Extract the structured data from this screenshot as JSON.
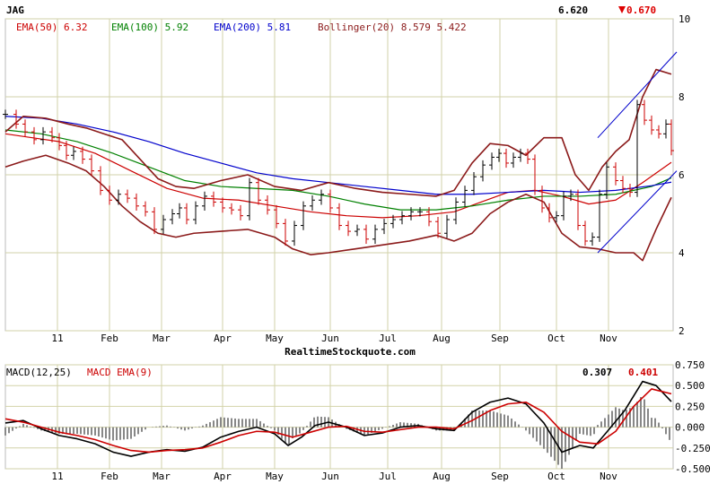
{
  "watermark": "RealtimeStockquote.com",
  "chart_data": [
    {
      "type": "ohlc",
      "symbol": "JAG",
      "last_price": "6.620",
      "change": "0.670",
      "change_direction": "down",
      "x_tick_labels": [
        "11",
        "Feb",
        "Mar",
        "Apr",
        "May",
        "Jun",
        "Jul",
        "Aug",
        "Sep",
        "Oct",
        "Nov"
      ],
      "y_tick_labels": [
        "2",
        "4",
        "6",
        "8",
        "10"
      ],
      "ylim": [
        2,
        10
      ],
      "grid": true,
      "legend": [
        {
          "label": "EMA(50)",
          "value": "6.32",
          "color": "#cc0000"
        },
        {
          "label": "EMA(100)",
          "value": "5.92",
          "color": "#008000"
        },
        {
          "label": "EMA(200)",
          "value": "5.81",
          "color": "#0000cc"
        },
        {
          "label": "Bollinger(20)",
          "value": "8.579 5.422",
          "color": "#8b1a1a"
        }
      ],
      "series": [
        {
          "name": "close",
          "color": "#000000",
          "x": [
            0,
            12,
            22,
            32,
            42,
            52,
            60,
            68,
            76,
            86,
            96,
            106,
            116,
            126,
            136,
            146,
            156,
            166,
            176,
            186,
            194,
            202,
            212,
            222,
            232,
            242,
            252,
            262,
            272,
            282,
            292,
            302,
            312,
            322,
            332,
            342,
            352,
            362,
            372,
            382,
            392,
            402,
            412,
            422,
            432,
            442,
            452,
            462,
            472,
            482,
            492,
            502,
            512,
            522,
            532,
            542,
            550,
            558,
            566,
            574,
            582,
            590,
            598,
            606,
            614,
            622,
            630,
            638,
            646,
            654,
            662,
            670,
            680,
            688,
            696,
            704,
            712,
            720,
            728,
            736,
            742
          ],
          "values": [
            7.55,
            7.3,
            7.1,
            6.9,
            7.1,
            6.95,
            6.75,
            6.5,
            6.6,
            6.4,
            6.1,
            5.6,
            5.35,
            5.5,
            5.4,
            5.2,
            5.05,
            4.6,
            4.85,
            5.0,
            5.15,
            4.85,
            5.2,
            5.45,
            5.3,
            5.15,
            5.1,
            4.95,
            5.8,
            5.35,
            5.1,
            4.75,
            4.3,
            4.7,
            5.2,
            5.35,
            5.5,
            5.15,
            4.7,
            4.55,
            4.6,
            4.35,
            4.6,
            4.75,
            4.85,
            4.95,
            5.05,
            5.05,
            4.8,
            4.5,
            4.85,
            5.3,
            5.6,
            5.95,
            6.25,
            6.45,
            6.55,
            6.3,
            6.45,
            6.55,
            6.4,
            5.6,
            5.15,
            4.9,
            4.95,
            5.45,
            5.5,
            4.7,
            4.3,
            4.4,
            5.5,
            6.2,
            5.85,
            5.65,
            5.55,
            7.8,
            7.4,
            7.15,
            7.05,
            7.3,
            6.62
          ]
        },
        {
          "name": "EMA(50)",
          "color": "#cc0000",
          "x": [
            0,
            30,
            60,
            100,
            140,
            180,
            220,
            260,
            300,
            340,
            380,
            420,
            460,
            500,
            530,
            560,
            590,
            620,
            650,
            680,
            710,
            742
          ],
          "values": [
            7.05,
            6.95,
            6.85,
            6.55,
            6.1,
            5.65,
            5.4,
            5.35,
            5.2,
            5.05,
            4.95,
            4.9,
            4.95,
            5.05,
            5.3,
            5.55,
            5.6,
            5.45,
            5.25,
            5.35,
            5.8,
            6.32
          ]
        },
        {
          "name": "EMA(100)",
          "color": "#008000",
          "x": [
            0,
            40,
            80,
            120,
            160,
            200,
            240,
            280,
            320,
            360,
            400,
            440,
            480,
            520,
            560,
            600,
            640,
            680,
            720,
            742
          ],
          "values": [
            7.15,
            7.05,
            6.85,
            6.55,
            6.2,
            5.85,
            5.7,
            5.65,
            5.6,
            5.45,
            5.25,
            5.1,
            5.1,
            5.2,
            5.35,
            5.45,
            5.45,
            5.5,
            5.7,
            5.92
          ]
        },
        {
          "name": "EMA(200)",
          "color": "#0000cc",
          "x": [
            0,
            40,
            80,
            120,
            160,
            200,
            240,
            280,
            320,
            360,
            400,
            440,
            480,
            520,
            560,
            600,
            640,
            680,
            720,
            742
          ],
          "values": [
            7.5,
            7.45,
            7.3,
            7.1,
            6.85,
            6.55,
            6.3,
            6.05,
            5.9,
            5.8,
            5.7,
            5.6,
            5.5,
            5.5,
            5.55,
            5.6,
            5.55,
            5.6,
            5.72,
            5.81
          ]
        },
        {
          "name": "Bollinger(20) upper",
          "color": "#8b1a1a",
          "x": [
            0,
            20,
            45,
            70,
            90,
            110,
            130,
            150,
            170,
            190,
            210,
            240,
            270,
            300,
            330,
            360,
            390,
            420,
            450,
            480,
            500,
            520,
            540,
            560,
            580,
            600,
            620,
            635,
            650,
            665,
            680,
            695,
            710,
            725,
            742
          ],
          "values": [
            7.1,
            7.5,
            7.45,
            7.3,
            7.2,
            7.05,
            6.9,
            6.4,
            5.9,
            5.7,
            5.65,
            5.85,
            6.0,
            5.7,
            5.6,
            5.8,
            5.65,
            5.55,
            5.5,
            5.45,
            5.6,
            6.3,
            6.8,
            6.75,
            6.5,
            6.95,
            6.95,
            6.0,
            5.6,
            6.2,
            6.6,
            6.9,
            8.0,
            8.7,
            8.58
          ]
        },
        {
          "name": "Bollinger(20) lower",
          "color": "#8b1a1a",
          "x": [
            0,
            20,
            45,
            70,
            90,
            110,
            130,
            150,
            170,
            190,
            210,
            240,
            270,
            300,
            320,
            340,
            360,
            390,
            420,
            450,
            480,
            500,
            520,
            540,
            560,
            580,
            600,
            620,
            640,
            660,
            680,
            700,
            710,
            725,
            742
          ],
          "values": [
            6.2,
            6.35,
            6.5,
            6.3,
            6.1,
            5.7,
            5.2,
            4.8,
            4.5,
            4.4,
            4.5,
            4.55,
            4.6,
            4.4,
            4.1,
            3.95,
            4.0,
            4.1,
            4.2,
            4.3,
            4.45,
            4.3,
            4.5,
            5.0,
            5.3,
            5.5,
            5.3,
            4.5,
            4.15,
            4.1,
            4.0,
            4.0,
            3.8,
            4.6,
            5.42
          ]
        }
      ],
      "trendlines": [
        {
          "name": "channel-upper",
          "color": "#0000cc",
          "x": [
            660,
            748
          ],
          "values": [
            6.95,
            9.15
          ]
        },
        {
          "name": "channel-lower",
          "color": "#0000cc",
          "x": [
            660,
            748
          ],
          "values": [
            4.0,
            6.1
          ]
        }
      ]
    },
    {
      "type": "line",
      "title": "MACD(12,25)",
      "signal_label": "MACD EMA(9)",
      "macd_value": "0.307",
      "signal_value": "0.401",
      "x_tick_labels": [
        "11",
        "Feb",
        "Mar",
        "Apr",
        "May",
        "Jun",
        "Jul",
        "Aug",
        "Sep",
        "Oct",
        "Nov"
      ],
      "y_tick_labels": [
        "0.750",
        "0.500",
        "0.250",
        "0.000",
        "-0.250",
        "-0.500"
      ],
      "ylim": [
        -0.5,
        0.75
      ],
      "grid": true,
      "series": [
        {
          "name": "MACD(12,25)",
          "color": "#000000",
          "x": [
            0,
            20,
            40,
            60,
            80,
            100,
            120,
            140,
            160,
            180,
            200,
            220,
            240,
            260,
            280,
            300,
            315,
            330,
            345,
            360,
            380,
            400,
            420,
            440,
            460,
            480,
            500,
            520,
            540,
            560,
            580,
            600,
            620,
            640,
            655,
            670,
            690,
            710,
            725,
            742
          ],
          "values": [
            0.05,
            0.08,
            -0.02,
            -0.1,
            -0.14,
            -0.2,
            -0.3,
            -0.35,
            -0.3,
            -0.27,
            -0.29,
            -0.24,
            -0.12,
            -0.05,
            0.0,
            -0.08,
            -0.22,
            -0.12,
            0.02,
            0.06,
            0.0,
            -0.1,
            -0.07,
            0.0,
            0.02,
            -0.02,
            -0.04,
            0.18,
            0.3,
            0.35,
            0.28,
            0.05,
            -0.3,
            -0.22,
            -0.25,
            -0.06,
            0.2,
            0.55,
            0.5,
            0.307
          ]
        },
        {
          "name": "MACD EMA(9)",
          "color": "#cc0000",
          "x": [
            0,
            20,
            40,
            60,
            80,
            100,
            120,
            140,
            160,
            180,
            200,
            220,
            240,
            260,
            280,
            300,
            320,
            340,
            360,
            380,
            400,
            420,
            440,
            460,
            480,
            500,
            520,
            540,
            560,
            580,
            600,
            620,
            640,
            660,
            680,
            700,
            720,
            742
          ],
          "values": [
            0.1,
            0.06,
            0.0,
            -0.06,
            -0.1,
            -0.15,
            -0.22,
            -0.28,
            -0.3,
            -0.28,
            -0.27,
            -0.25,
            -0.18,
            -0.1,
            -0.05,
            -0.06,
            -0.12,
            -0.06,
            0.0,
            0.01,
            -0.05,
            -0.06,
            -0.03,
            0.0,
            0.0,
            -0.02,
            0.08,
            0.2,
            0.28,
            0.3,
            0.18,
            -0.05,
            -0.18,
            -0.2,
            -0.05,
            0.25,
            0.46,
            0.401
          ]
        }
      ]
    }
  ]
}
